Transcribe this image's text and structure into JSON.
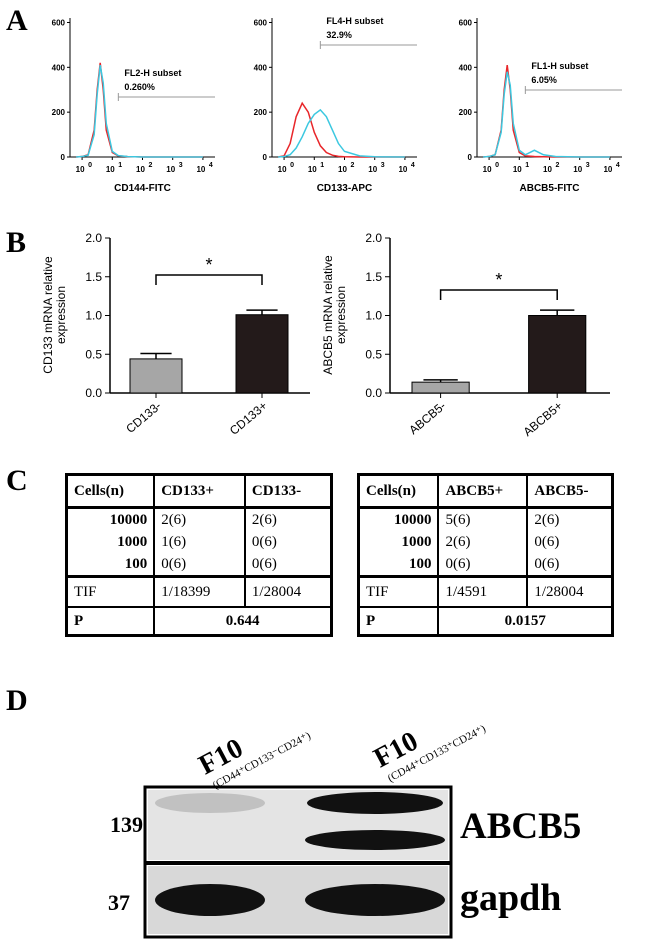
{
  "panel_labels": [
    "A",
    "B",
    "C",
    "D"
  ],
  "flow_axes": {
    "ylim": [
      0,
      620
    ],
    "yticks": [
      0,
      200,
      400,
      600
    ],
    "xlim": [
      -0.4,
      4.4
    ],
    "xticks": [
      0,
      1,
      2,
      3,
      4
    ],
    "xtick_base": "10",
    "control_color": "#e8262a",
    "sample_color": "#3cc8e0"
  },
  "flow_plots": [
    {
      "xlabel": "CD144-FITC",
      "gate_name": "FL2-H subset",
      "gate_value": "0.260%",
      "x": [
        -0.2,
        0,
        0.2,
        0.4,
        0.5,
        0.6,
        0.7,
        0.8,
        1.0,
        1.2,
        1.5,
        2,
        3,
        4
      ],
      "control": [
        0,
        2,
        10,
        120,
        300,
        420,
        300,
        120,
        20,
        5,
        2,
        0,
        0,
        0
      ],
      "sample": [
        0,
        2,
        8,
        100,
        280,
        410,
        330,
        150,
        25,
        6,
        2,
        0,
        0,
        0
      ]
    },
    {
      "xlabel": "CD133-APC",
      "gate_name": "FL4-H subset",
      "gate_value": "32.9%",
      "x": [
        -0.2,
        0,
        0.2,
        0.4,
        0.6,
        0.8,
        1.0,
        1.2,
        1.4,
        1.6,
        1.8,
        2.0,
        2.5,
        3,
        4
      ],
      "control": [
        0,
        5,
        60,
        180,
        240,
        200,
        110,
        50,
        20,
        8,
        3,
        1,
        0,
        0,
        0
      ],
      "sample": [
        0,
        2,
        10,
        40,
        90,
        150,
        190,
        210,
        180,
        120,
        60,
        25,
        5,
        1,
        0
      ]
    },
    {
      "xlabel": "ABCB5-FITC",
      "gate_name": "FL1-H subset",
      "gate_value": "6.05%",
      "x": [
        -0.2,
        0,
        0.2,
        0.4,
        0.5,
        0.6,
        0.7,
        0.8,
        1.0,
        1.2,
        1.5,
        1.8,
        2.2,
        3,
        4
      ],
      "control": [
        0,
        2,
        10,
        120,
        300,
        410,
        300,
        120,
        20,
        5,
        2,
        1,
        0,
        0,
        0
      ],
      "sample": [
        0,
        2,
        10,
        110,
        280,
        380,
        320,
        150,
        30,
        10,
        30,
        10,
        2,
        0,
        0
      ]
    }
  ],
  "bar_axes": {
    "ylim": [
      0,
      2
    ],
    "yticks": [
      {
        "value": 0,
        "label": "0.0"
      },
      {
        "value": 0.5,
        "label": "0.5"
      },
      {
        "value": 1,
        "label": "1.0"
      },
      {
        "value": 1.5,
        "label": "1.5"
      },
      {
        "value": 2,
        "label": "2.0"
      }
    ],
    "colors": [
      "#a6a6a6",
      "#231a1a"
    ]
  },
  "bar_charts": [
    {
      "ylabel": [
        "CD133 mRNA relative",
        "expression"
      ],
      "categories": [
        "CD133-",
        "CD133+"
      ],
      "values": [
        0.44,
        1.01
      ],
      "errors": [
        0.07,
        0.06
      ],
      "significance": "*"
    },
    {
      "ylabel": [
        "ABCB5 mRNA relative",
        "expression"
      ],
      "categories": [
        "ABCB5-",
        "ABCB5+"
      ],
      "values": [
        0.14,
        1.0
      ],
      "errors": [
        0.03,
        0.07
      ],
      "significance": "*"
    }
  ],
  "tables": [
    {
      "header": [
        "Cells(n)",
        "CD133+",
        "CD133-"
      ],
      "rows": [
        [
          "10000",
          "2(6)",
          "2(6)"
        ],
        [
          "1000",
          "1(6)",
          "0(6)"
        ],
        [
          "100",
          "0(6)",
          "0(6)"
        ]
      ],
      "tif": [
        "TIF",
        "1/18399",
        "1/28004"
      ],
      "p": [
        "P",
        "0.644"
      ]
    },
    {
      "header": [
        "Cells(n)",
        "ABCB5+",
        "ABCB5-"
      ],
      "rows": [
        [
          "10000",
          "5(6)",
          "2(6)"
        ],
        [
          "1000",
          "2(6)",
          "0(6)"
        ],
        [
          "100",
          "0(6)",
          "0(6)"
        ]
      ],
      "tif": [
        "TIF",
        "1/4591",
        "1/28004"
      ],
      "p": [
        "P",
        "0.0157"
      ]
    }
  ],
  "blot": {
    "lanes": [
      {
        "name": "F10",
        "sub": "(CD44⁺CD133⁻CD24⁺)"
      },
      {
        "name": "F10",
        "sub": "(CD44⁺CD133⁺CD24⁺)"
      }
    ],
    "markers": [
      "139",
      "37"
    ],
    "proteins": [
      "ABCB5",
      "gapdh"
    ]
  }
}
